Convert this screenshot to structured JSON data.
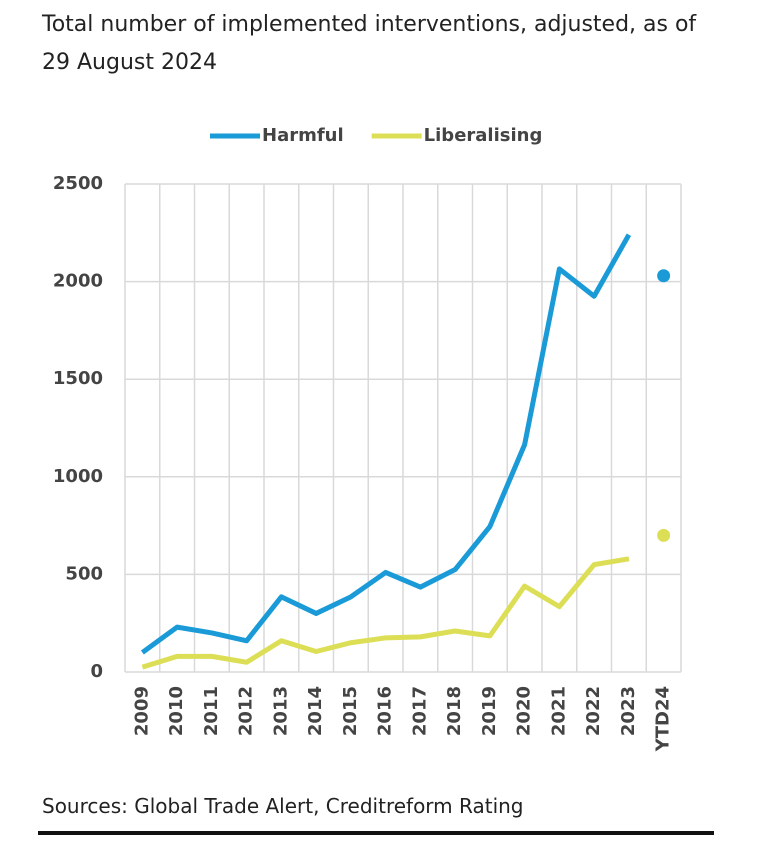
{
  "chart_data": {
    "type": "line",
    "title": "Total number of implemented interventions, adjusted, as of 29 August 2024",
    "source": "Sources: Global Trade Alert, Creditreform Rating",
    "categories": [
      "2009",
      "2010",
      "2011",
      "2012",
      "2013",
      "2014",
      "2015",
      "2016",
      "2017",
      "2018",
      "2019",
      "2020",
      "2021",
      "2022",
      "2023",
      "YTD24"
    ],
    "series": [
      {
        "name": "Harmful",
        "color": "#1a9bd7",
        "values": [
          100,
          230,
          200,
          160,
          385,
          300,
          385,
          510,
          435,
          525,
          745,
          1165,
          2065,
          1925,
          2240,
          2030
        ]
      },
      {
        "name": "Liberalising",
        "color": "#dcdf55",
        "values": [
          25,
          80,
          80,
          50,
          160,
          105,
          150,
          175,
          180,
          210,
          185,
          440,
          335,
          550,
          580,
          700
        ]
      }
    ],
    "ylim": [
      0,
      2500
    ],
    "yticks": [
      0,
      500,
      1000,
      1500,
      2000,
      2500
    ],
    "grid": true,
    "legend": "top"
  }
}
